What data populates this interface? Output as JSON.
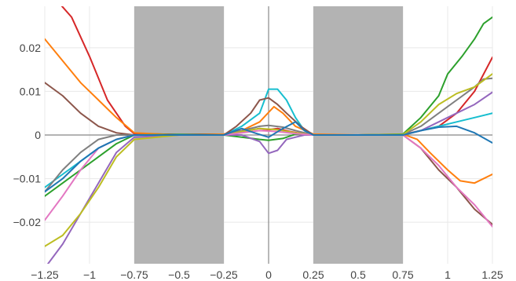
{
  "chart_data": {
    "type": "line",
    "title": "",
    "xlabel": "",
    "ylabel": "",
    "xlim": [
      -1.25,
      1.25
    ],
    "ylim": [
      -0.0295,
      0.0295
    ],
    "grid": true,
    "legend": "none",
    "x_ticks": [
      {
        "value": -1.25,
        "label": "−1.25"
      },
      {
        "value": -1.0,
        "label": "−1"
      },
      {
        "value": -0.75,
        "label": "−0.75"
      },
      {
        "value": -0.5,
        "label": "−0.5"
      },
      {
        "value": -0.25,
        "label": "−0.25"
      },
      {
        "value": 0.0,
        "label": "0"
      },
      {
        "value": 0.25,
        "label": "0.25"
      },
      {
        "value": 0.5,
        "label": "0.5"
      },
      {
        "value": 0.75,
        "label": "0.75"
      },
      {
        "value": 1.0,
        "label": "1"
      },
      {
        "value": 1.25,
        "label": "1.25"
      }
    ],
    "y_ticks": [
      {
        "value": 0.02,
        "label": "0.02"
      },
      {
        "value": 0.01,
        "label": "0.01"
      },
      {
        "value": 0.0,
        "label": "0"
      },
      {
        "value": -0.01,
        "label": "−0.01"
      },
      {
        "value": -0.02,
        "label": "−0.02"
      }
    ],
    "shaded_regions": [
      {
        "x0": -0.75,
        "x1": -0.25,
        "color": "#b3b3b3"
      },
      {
        "x0": 0.25,
        "x1": 0.75,
        "color": "#b3b3b3"
      }
    ],
    "series": [
      {
        "color": "#d62728",
        "points": [
          [
            -1.25,
            0.034
          ],
          [
            -1.1,
            0.027
          ],
          [
            -1.0,
            0.018
          ],
          [
            -0.9,
            0.008
          ],
          [
            -0.8,
            0.002
          ],
          [
            -0.75,
            0.0003
          ],
          [
            -0.5,
            0.0001
          ],
          [
            -0.25,
            0.0002
          ],
          [
            -0.15,
            0.0008
          ],
          [
            -0.05,
            0.0015
          ],
          [
            0.0,
            0.0012
          ],
          [
            0.05,
            0.0015
          ],
          [
            0.12,
            0.0008
          ],
          [
            0.2,
            0.0002
          ],
          [
            0.25,
            0.0
          ],
          [
            0.5,
            0.0
          ],
          [
            0.75,
            0.0001
          ],
          [
            0.85,
            0.001
          ],
          [
            0.95,
            0.002
          ],
          [
            1.05,
            0.005
          ],
          [
            1.15,
            0.01
          ],
          [
            1.25,
            0.0178
          ]
        ]
      },
      {
        "color": "#17becf",
        "points": [
          [
            -1.25,
            -0.012
          ],
          [
            -1.15,
            -0.009
          ],
          [
            -1.05,
            -0.006
          ],
          [
            -0.95,
            -0.003
          ],
          [
            -0.85,
            -0.001
          ],
          [
            -0.75,
            0.0
          ],
          [
            -0.5,
            0.0001
          ],
          [
            -0.25,
            0.0
          ],
          [
            -0.15,
            0.002
          ],
          [
            -0.05,
            0.005
          ],
          [
            0.0,
            0.0105
          ],
          [
            0.05,
            0.0105
          ],
          [
            0.1,
            0.008
          ],
          [
            0.15,
            0.004
          ],
          [
            0.2,
            0.001
          ],
          [
            0.25,
            0.0
          ],
          [
            0.5,
            0.0
          ],
          [
            0.75,
            0.0
          ],
          [
            0.85,
            0.001
          ],
          [
            0.95,
            0.002
          ],
          [
            1.05,
            0.003
          ],
          [
            1.15,
            0.004
          ],
          [
            1.25,
            0.005
          ]
        ]
      },
      {
        "color": "#ff7f0e",
        "points": [
          [
            -1.25,
            0.022
          ],
          [
            -1.15,
            0.017
          ],
          [
            -1.05,
            0.012
          ],
          [
            -0.95,
            0.008
          ],
          [
            -0.85,
            0.004
          ],
          [
            -0.75,
            0.0005
          ],
          [
            -0.5,
            0.0
          ],
          [
            -0.25,
            0.0002
          ],
          [
            -0.15,
            0.001
          ],
          [
            -0.05,
            0.003
          ],
          [
            0.03,
            0.0065
          ],
          [
            0.08,
            0.005
          ],
          [
            0.15,
            0.002
          ],
          [
            0.25,
            0.0002
          ],
          [
            0.5,
            0.0
          ],
          [
            0.75,
            0.0002
          ],
          [
            0.83,
            -0.001
          ],
          [
            0.9,
            -0.004
          ],
          [
            1.0,
            -0.008
          ],
          [
            1.07,
            -0.0105
          ],
          [
            1.15,
            -0.011
          ],
          [
            1.25,
            -0.009
          ]
        ]
      },
      {
        "color": "#2ca02c",
        "points": [
          [
            -1.25,
            -0.014
          ],
          [
            -1.15,
            -0.011
          ],
          [
            -1.05,
            -0.008
          ],
          [
            -0.95,
            -0.005
          ],
          [
            -0.85,
            -0.002
          ],
          [
            -0.75,
            0.0
          ],
          [
            -0.5,
            0.0001
          ],
          [
            -0.25,
            0.0
          ],
          [
            -0.15,
            -0.0005
          ],
          [
            -0.05,
            -0.001
          ],
          [
            0.0,
            -0.0012
          ],
          [
            0.08,
            -0.0008
          ],
          [
            0.15,
            0.0002
          ],
          [
            0.25,
            0.0
          ],
          [
            0.5,
            0.0
          ],
          [
            0.75,
            0.0002
          ],
          [
            0.85,
            0.004
          ],
          [
            0.95,
            0.009
          ],
          [
            1.0,
            0.014
          ],
          [
            1.08,
            0.018
          ],
          [
            1.15,
            0.022
          ],
          [
            1.2,
            0.0255
          ],
          [
            1.25,
            0.027
          ]
        ]
      },
      {
        "color": "#8c564b",
        "points": [
          [
            -1.25,
            0.012
          ],
          [
            -1.15,
            0.009
          ],
          [
            -1.05,
            0.005
          ],
          [
            -0.95,
            0.002
          ],
          [
            -0.85,
            0.0005
          ],
          [
            -0.75,
            0.0
          ],
          [
            -0.5,
            0.0
          ],
          [
            -0.25,
            0.0
          ],
          [
            -0.18,
            0.002
          ],
          [
            -0.1,
            0.005
          ],
          [
            -0.05,
            0.008
          ],
          [
            0.0,
            0.0085
          ],
          [
            0.05,
            0.007
          ],
          [
            0.1,
            0.005
          ],
          [
            0.18,
            0.002
          ],
          [
            0.25,
            0.0
          ],
          [
            0.5,
            0.0
          ],
          [
            0.75,
            0.0
          ],
          [
            0.85,
            -0.003
          ],
          [
            0.95,
            -0.008
          ],
          [
            1.05,
            -0.012
          ],
          [
            1.15,
            -0.017
          ],
          [
            1.25,
            -0.0205
          ]
        ]
      },
      {
        "color": "#9467bd",
        "points": [
          [
            -1.25,
            -0.0305
          ],
          [
            -1.15,
            -0.025
          ],
          [
            -1.05,
            -0.018
          ],
          [
            -0.95,
            -0.011
          ],
          [
            -0.85,
            -0.004
          ],
          [
            -0.75,
            -0.0005
          ],
          [
            -0.5,
            0.0
          ],
          [
            -0.25,
            0.0
          ],
          [
            -0.15,
            0.0
          ],
          [
            -0.05,
            -0.0015
          ],
          [
            0.0,
            -0.0042
          ],
          [
            0.05,
            -0.0035
          ],
          [
            0.1,
            -0.001
          ],
          [
            0.2,
            0.0
          ],
          [
            0.25,
            0.0
          ],
          [
            0.5,
            0.0
          ],
          [
            0.75,
            0.0
          ],
          [
            0.85,
            0.001
          ],
          [
            0.95,
            0.003
          ],
          [
            1.05,
            0.005
          ],
          [
            1.15,
            0.007
          ],
          [
            1.25,
            0.0098
          ]
        ]
      },
      {
        "color": "#7f7f7f",
        "points": [
          [
            -1.25,
            -0.013
          ],
          [
            -1.15,
            -0.008
          ],
          [
            -1.05,
            -0.004
          ],
          [
            -0.95,
            -0.001
          ],
          [
            -0.85,
            0.0
          ],
          [
            -0.75,
            0.0
          ],
          [
            -0.5,
            0.0
          ],
          [
            -0.25,
            0.0
          ],
          [
            -0.15,
            0.001
          ],
          [
            -0.05,
            0.002
          ],
          [
            0.0,
            0.0022
          ],
          [
            0.08,
            0.0018
          ],
          [
            0.15,
            0.001
          ],
          [
            0.25,
            0.0
          ],
          [
            0.5,
            0.0
          ],
          [
            0.75,
            0.0001
          ],
          [
            0.85,
            0.002
          ],
          [
            0.95,
            0.005
          ],
          [
            1.05,
            0.008
          ],
          [
            1.15,
            0.011
          ],
          [
            1.2,
            0.0128
          ],
          [
            1.25,
            0.013
          ]
        ]
      },
      {
        "color": "#bcbd22",
        "points": [
          [
            -1.25,
            -0.0255
          ],
          [
            -1.15,
            -0.023
          ],
          [
            -1.05,
            -0.018
          ],
          [
            -0.95,
            -0.012
          ],
          [
            -0.85,
            -0.005
          ],
          [
            -0.75,
            -0.001
          ],
          [
            -0.5,
            0.0
          ],
          [
            -0.25,
            0.0
          ],
          [
            -0.15,
            0.0008
          ],
          [
            -0.05,
            0.0015
          ],
          [
            0.05,
            0.0012
          ],
          [
            0.15,
            0.0005
          ],
          [
            0.25,
            0.0
          ],
          [
            0.5,
            0.0
          ],
          [
            0.75,
            0.0001
          ],
          [
            0.85,
            0.003
          ],
          [
            0.95,
            0.007
          ],
          [
            1.05,
            0.0095
          ],
          [
            1.15,
            0.011
          ],
          [
            1.25,
            0.014
          ]
        ]
      },
      {
        "color": "#e377c2",
        "points": [
          [
            -1.25,
            -0.0195
          ],
          [
            -1.15,
            -0.014
          ],
          [
            -1.05,
            -0.008
          ],
          [
            -0.95,
            -0.003
          ],
          [
            -0.85,
            -0.001
          ],
          [
            -0.75,
            0.0
          ],
          [
            -0.5,
            0.0
          ],
          [
            -0.25,
            0.0
          ],
          [
            -0.15,
            0.0005
          ],
          [
            -0.05,
            0.001
          ],
          [
            0.05,
            0.0008
          ],
          [
            0.15,
            0.0003
          ],
          [
            0.25,
            0.0
          ],
          [
            0.5,
            0.0
          ],
          [
            0.75,
            0.0
          ],
          [
            0.85,
            -0.003
          ],
          [
            0.95,
            -0.007
          ],
          [
            1.05,
            -0.012
          ],
          [
            1.15,
            -0.016
          ],
          [
            1.25,
            -0.021
          ]
        ]
      },
      {
        "color": "#1f77b4",
        "points": [
          [
            -1.25,
            -0.013
          ],
          [
            -1.15,
            -0.01
          ],
          [
            -1.05,
            -0.006
          ],
          [
            -0.95,
            -0.003
          ],
          [
            -0.85,
            -0.001
          ],
          [
            -0.75,
            0.0
          ],
          [
            -0.5,
            0.0
          ],
          [
            -0.25,
            0.0
          ],
          [
            -0.15,
            0.0015
          ],
          [
            -0.08,
            0.0005
          ],
          [
            0.0,
            -0.0005
          ],
          [
            0.08,
            0.0015
          ],
          [
            0.15,
            0.003
          ],
          [
            0.2,
            0.001
          ],
          [
            0.25,
            0.0
          ],
          [
            0.5,
            0.0
          ],
          [
            0.75,
            0.0
          ],
          [
            0.85,
            0.001
          ],
          [
            0.95,
            0.0018
          ],
          [
            1.05,
            0.002
          ],
          [
            1.15,
            0.0005
          ],
          [
            1.25,
            -0.0018
          ]
        ]
      }
    ]
  }
}
